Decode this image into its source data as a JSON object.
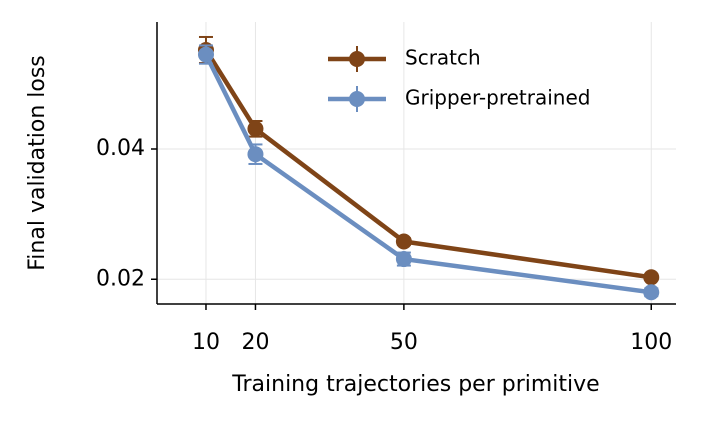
{
  "chart_data": {
    "type": "line",
    "x_label": "Training trajectories per primitive",
    "y_label": "Final validation loss",
    "x": [
      10,
      20,
      50,
      100
    ],
    "series": [
      {
        "name": "Scratch",
        "color": "#7f4417",
        "values": [
          0.0552,
          0.0431,
          0.0258,
          0.0203
        ],
        "errors": [
          0.002,
          0.0012,
          0.0005,
          0.0004
        ]
      },
      {
        "name": "Gripper-pretrained",
        "color": "#6b8ec0",
        "values": [
          0.0545,
          0.0392,
          0.0231,
          0.018
        ],
        "errors": [
          0.0014,
          0.0015,
          0.001,
          0.0006
        ]
      }
    ],
    "xlim": [
      0.1,
      105
    ],
    "ylim": [
      0.0162,
      0.0595
    ],
    "xticks": [
      10,
      20,
      50,
      100
    ],
    "yticks": [
      0.02,
      0.04
    ],
    "grid": true,
    "legend": "upper center"
  }
}
